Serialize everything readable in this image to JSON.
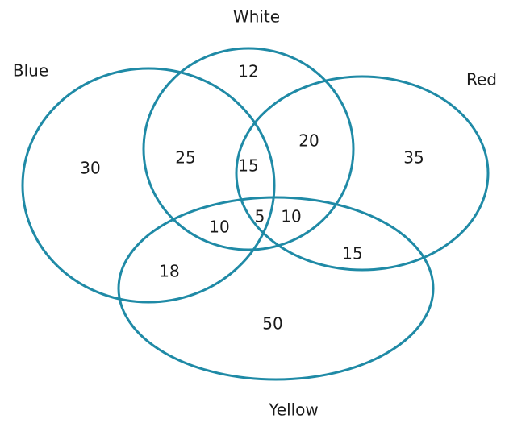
{
  "sets": [
    {
      "label": "White"
    },
    {
      "label": "Blue"
    },
    {
      "label": "Red"
    },
    {
      "label": "Yellow"
    }
  ],
  "regions": [
    {
      "value": 12
    },
    {
      "value": 25
    },
    {
      "value": 30
    },
    {
      "value": 15
    },
    {
      "value": 20
    },
    {
      "value": 35
    },
    {
      "value": 10
    },
    {
      "value": 5
    },
    {
      "value": 10
    },
    {
      "value": 18
    },
    {
      "value": 15
    },
    {
      "value": 50
    }
  ]
}
